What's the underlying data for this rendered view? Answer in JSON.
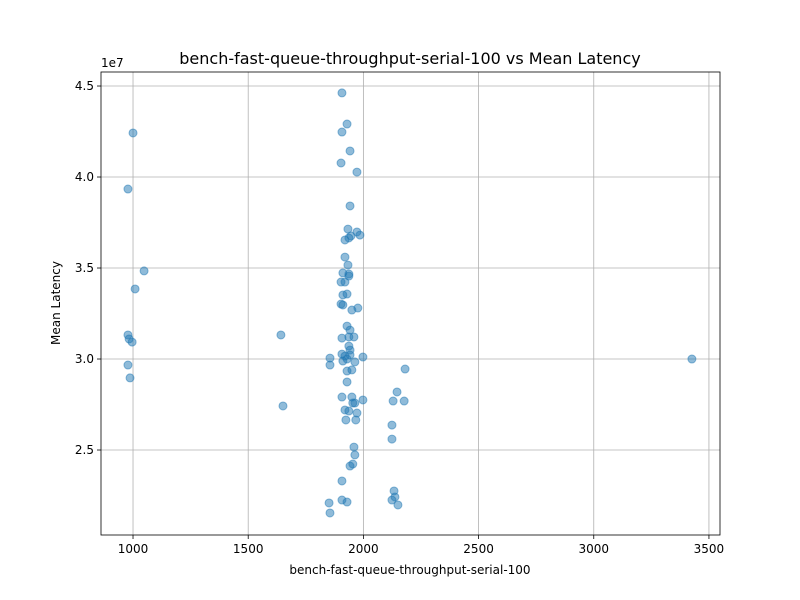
{
  "chart_data": {
    "type": "scatter",
    "title": "bench-fast-queue-throughput-serial-100 vs Mean Latency",
    "x_label": "bench-fast-queue-throughput-serial-100",
    "y_label": "Mean Latency",
    "y_offset_label": "1e7",
    "grid": true,
    "series": [
      {
        "color": "#1f77b4",
        "x": [
          1907,
          1929,
          1907,
          1000,
          1942,
          1903,
          1972,
          978,
          1942,
          1933,
          1972,
          1985,
          1946,
          1937,
          1920,
          1920,
          1933,
          1048,
          1937,
          1911,
          1937,
          1903,
          1920,
          1009,
          1929,
          1911,
          1903,
          1911,
          1976,
          1950,
          1929,
          1942,
          1642,
          978,
          983,
          996,
          1907,
          1937,
          1959,
          1937,
          1942,
          1907,
          1942,
          1855,
          1920,
          1929,
          1998,
          3426,
          1911,
          1963,
          1855,
          978,
          2181,
          1929,
          1950,
          987,
          1929,
          2146,
          1907,
          1950,
          1998,
          2129,
          2177,
          1963,
          1954,
          1651,
          1920,
          1937,
          1972,
          1924,
          1967,
          2124,
          2124,
          1959,
          1963,
          1954,
          1942,
          1907,
          2133,
          2137,
          1907,
          2124,
          1929,
          1851,
          2150,
          1855
        ],
        "values": [
          4.462,
          4.291,
          4.247,
          4.242,
          4.143,
          4.077,
          4.027,
          3.934,
          3.841,
          3.714,
          3.698,
          3.681,
          3.676,
          3.665,
          3.654,
          3.56,
          3.516,
          3.484,
          3.467,
          3.473,
          3.456,
          3.423,
          3.423,
          3.385,
          3.357,
          3.352,
          3.302,
          3.297,
          3.28,
          3.269,
          3.181,
          3.159,
          3.132,
          3.132,
          3.11,
          3.093,
          3.115,
          3.121,
          3.121,
          3.071,
          3.049,
          3.027,
          3.022,
          3.005,
          3.016,
          3.0,
          3.011,
          3.0,
          2.989,
          2.984,
          2.967,
          2.967,
          2.945,
          2.934,
          2.94,
          2.896,
          2.874,
          2.819,
          2.791,
          2.791,
          2.775,
          2.769,
          2.769,
          2.758,
          2.758,
          2.742,
          2.72,
          2.714,
          2.703,
          2.665,
          2.665,
          2.637,
          2.56,
          2.516,
          2.473,
          2.423,
          2.412,
          2.33,
          2.275,
          2.242,
          2.225,
          2.225,
          2.214,
          2.209,
          2.198,
          2.154
        ]
      }
    ],
    "xlim": [
      861,
      3548
    ],
    "ylim": [
      2.033,
      4.577
    ],
    "xticks": [
      1000,
      1500,
      2000,
      2500,
      3000,
      3500
    ],
    "yticks": [
      2.5,
      {
        "value": 3,
        "label": "3.0"
      },
      3.5,
      {
        "value": 4,
        "label": "4.0"
      },
      4.5
    ]
  }
}
